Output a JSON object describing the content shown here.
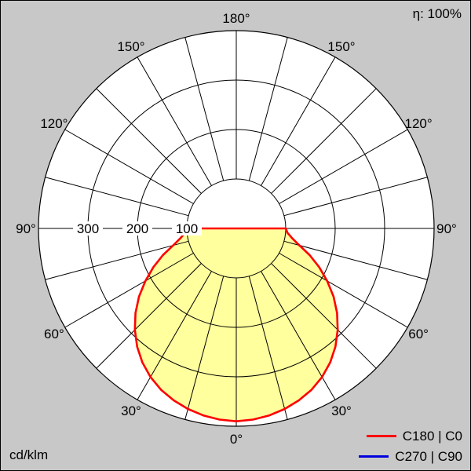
{
  "header": {
    "efficiency": "η: 100%"
  },
  "footer": {
    "unit": "cd/klm"
  },
  "legend": [
    {
      "label": "C180 | C0",
      "color": "#ff0000"
    },
    {
      "label": "C270 | C90",
      "color": "#0000dd"
    }
  ],
  "chart_data": {
    "type": "polar",
    "subtype": "luminous-intensity-distribution",
    "unit": "cd/klm",
    "radial_max": 400,
    "radial_ticks": [
      {
        "value": 100,
        "label": "100"
      },
      {
        "value": 200,
        "label": "200"
      },
      {
        "value": 300,
        "label": "300"
      }
    ],
    "angle_step_deg": 15,
    "angle_labels": [
      {
        "deg": 0,
        "label": "0°"
      },
      {
        "deg": 30,
        "label": "30°"
      },
      {
        "deg": 60,
        "label": "60°"
      },
      {
        "deg": 90,
        "label": "90°"
      },
      {
        "deg": 120,
        "label": "120°"
      },
      {
        "deg": 150,
        "label": "150°"
      },
      {
        "deg": 180,
        "label": "180°"
      }
    ],
    "grid_color": "#000000",
    "background_outside": "#c8c8c8",
    "background_inside": "#ffffff",
    "series": [
      {
        "name": "C180 | C0",
        "color": "#ff0000",
        "fill": "#ffff9e",
        "symmetric": true,
        "gamma_deg": [
          0,
          5,
          10,
          15,
          20,
          25,
          30,
          35,
          40,
          45,
          50,
          55,
          60,
          65,
          70,
          75,
          80,
          85,
          90
        ],
        "values_cd_per_klm": [
          390,
          388,
          384,
          378,
          370,
          360,
          347,
          331,
          312,
          290,
          266,
          240,
          212,
          185,
          158,
          132,
          115,
          104,
          100
        ]
      }
    ],
    "legend_position": "bottom-right"
  }
}
